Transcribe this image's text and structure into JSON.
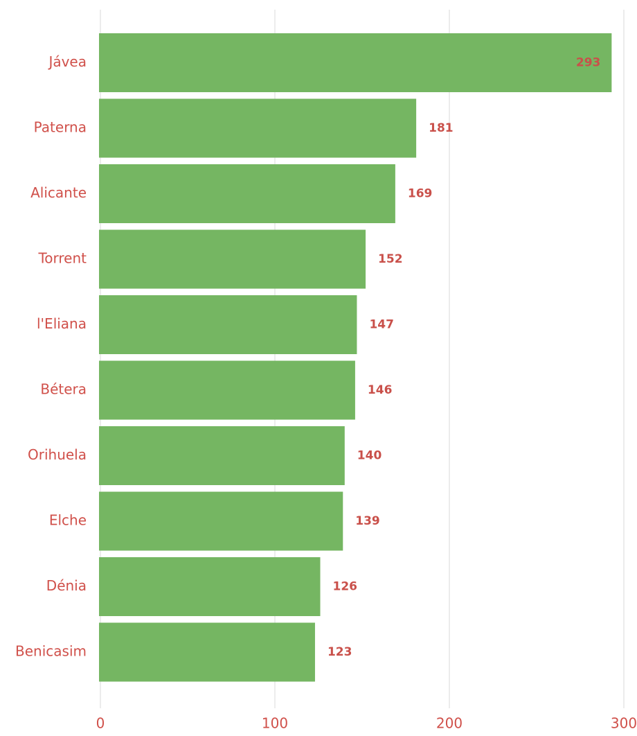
{
  "chart_data": {
    "type": "bar",
    "orientation": "horizontal",
    "categories": [
      "Jávea",
      "Paterna",
      "Alicante",
      "Torrent",
      "l'Eliana",
      "Bétera",
      "Orihuela",
      "Elche",
      "Dénia",
      "Benicasim"
    ],
    "values": [
      293,
      181,
      169,
      152,
      147,
      146,
      140,
      139,
      126,
      123
    ],
    "color": "#75b662",
    "xlim": [
      0,
      300
    ],
    "xticks": [
      0,
      100,
      200,
      300
    ],
    "grid": true
  }
}
